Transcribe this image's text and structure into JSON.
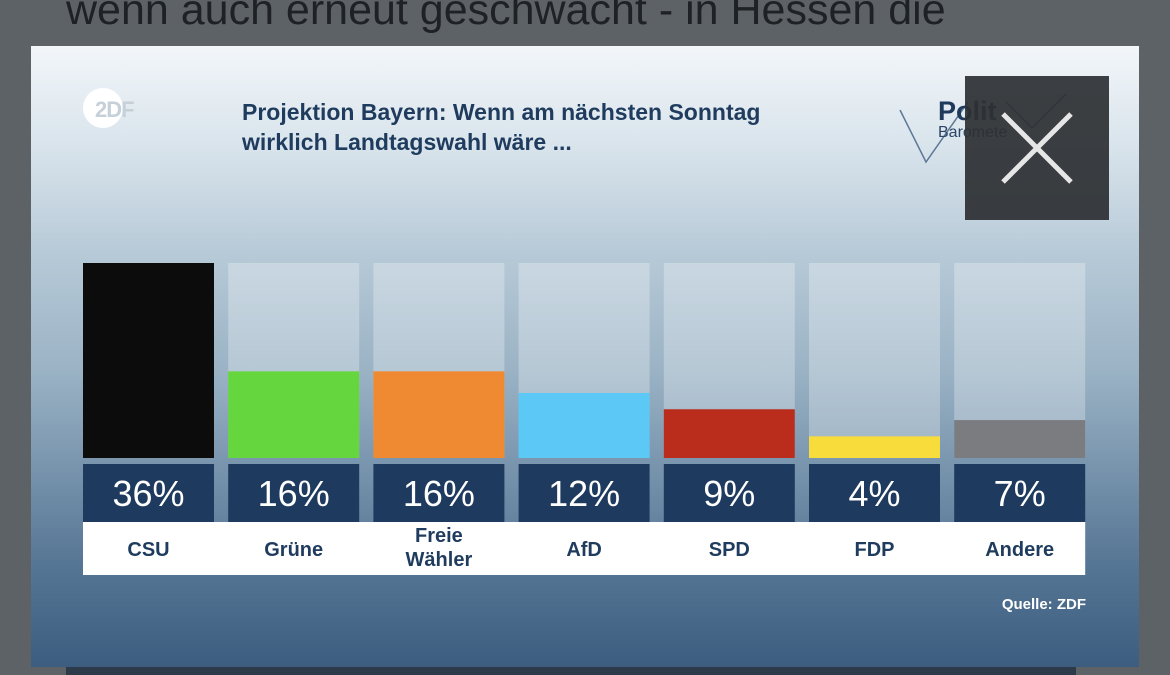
{
  "page": {
    "background_headline": "wenn auch erneut geschwächt - in Hessen die"
  },
  "graphic": {
    "logo_text": "2DF",
    "title_line1": "Projektion Bayern: Wenn am nächsten Sonntag",
    "title_line2": "wirklich Landtagswahl wäre ...",
    "brand_line1": "Polit",
    "brand_line2": "Baromete",
    "source": "Quelle: ZDF"
  },
  "close_button": {
    "icon": "close-icon"
  },
  "chart_data": {
    "type": "bar",
    "categories": [
      "CSU",
      "Grüne",
      "Freie\nWähler",
      "AfD",
      "SPD",
      "FDP",
      "Andere"
    ],
    "values": [
      36,
      16,
      16,
      12,
      9,
      4,
      7
    ],
    "value_labels": [
      "36%",
      "16%",
      "16%",
      "12%",
      "9%",
      "4%",
      "7%"
    ],
    "colors": [
      "#0c0c0c",
      "#66d63e",
      "#f08a32",
      "#5cc8f6",
      "#ba2d1c",
      "#f7dc3c",
      "#7a7c80"
    ],
    "ylim": [
      0,
      36
    ],
    "title": "Projektion Bayern: Wenn am nächsten Sonntag wirklich Landtagswahl wäre ...",
    "grid": false,
    "legend": "none"
  }
}
